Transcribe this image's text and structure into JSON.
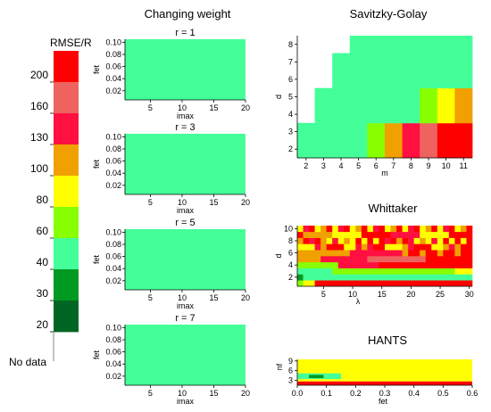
{
  "legend": {
    "title": "RMSE/R",
    "no_data_label": "No data",
    "tick_labels": [
      "200",
      "160",
      "130",
      "100",
      "80",
      "60",
      "40",
      "30",
      "20"
    ],
    "colors_top_to_bottom": [
      "#ff0000",
      "#ee6360",
      "#ff1040",
      "#f0a000",
      "#ffff00",
      "#88ff00",
      "#44ff99",
      "#009922",
      "#006622"
    ],
    "no_data_color": "#ffffff"
  },
  "chart_data": [
    {
      "panel": "changing-weight",
      "title": "Changing weight",
      "type": "heatmap",
      "subplots": [
        {
          "title": "r = 1",
          "xlabel": "imax",
          "ylabel": "fet",
          "xticks": [
            "5",
            "10",
            "15",
            "20"
          ],
          "yticks": [
            "0.10",
            "0.08",
            "0.06",
            "0.04",
            "0.02"
          ],
          "xlim": [
            1,
            20
          ],
          "ylim": [
            0.005,
            0.105
          ],
          "fill": "#44ff99"
        },
        {
          "title": "r = 3",
          "xlabel": "imax",
          "ylabel": "fet",
          "xticks": [
            "5",
            "10",
            "15",
            "20"
          ],
          "yticks": [
            "0.10",
            "0.08",
            "0.06",
            "0.04",
            "0.02"
          ],
          "xlim": [
            1,
            20
          ],
          "ylim": [
            0.005,
            0.105
          ],
          "fill": "#44ff99"
        },
        {
          "title": "r = 5",
          "xlabel": "imax",
          "ylabel": "fet",
          "xticks": [
            "5",
            "10",
            "15",
            "20"
          ],
          "yticks": [
            "0.10",
            "0.08",
            "0.06",
            "0.04",
            "0.02"
          ],
          "xlim": [
            1,
            20
          ],
          "ylim": [
            0.005,
            0.105
          ],
          "fill": "#44ff99"
        },
        {
          "title": "r = 7",
          "xlabel": "imax",
          "ylabel": "fet",
          "xticks": [
            "5",
            "10",
            "15",
            "20"
          ],
          "yticks": [
            "0.10",
            "0.08",
            "0.06",
            "0.04",
            "0.02"
          ],
          "xlim": [
            1,
            20
          ],
          "ylim": [
            0.005,
            0.105
          ],
          "fill": "#44ff99"
        }
      ]
    },
    {
      "panel": "savitzky-golay",
      "title": "Savitzky-Golay",
      "type": "heatmap",
      "xlabel": "m",
      "ylabel": "d",
      "xticks": [
        "2",
        "3",
        "4",
        "5",
        "6",
        "7",
        "8",
        "9",
        "10",
        "11"
      ],
      "yticks": [
        "2",
        "3",
        "4",
        "5",
        "6",
        "7",
        "8"
      ],
      "xlim": [
        1.5,
        11.5
      ],
      "ylim": [
        1.5,
        8.5
      ],
      "valid_rows_by_column": [
        {
          "m": 2,
          "d_max": 3
        },
        {
          "m": 3,
          "d_max": 5
        },
        {
          "m": 4,
          "d_max": 7
        },
        {
          "m": 5,
          "d_max": 8
        },
        {
          "m": 6,
          "d_max": 8
        },
        {
          "m": 7,
          "d_max": 8
        },
        {
          "m": 8,
          "d_max": 8
        },
        {
          "m": 9,
          "d_max": 8
        },
        {
          "m": 10,
          "d_max": 8
        },
        {
          "m": 11,
          "d_max": 8
        }
      ],
      "cells": [
        {
          "m": 6,
          "d": 2,
          "color": "#88ff00"
        },
        {
          "m": 6,
          "d": 3,
          "color": "#88ff00"
        },
        {
          "m": 7,
          "d": 2,
          "color": "#f0a000"
        },
        {
          "m": 7,
          "d": 3,
          "color": "#f0a000"
        },
        {
          "m": 8,
          "d": 2,
          "color": "#ff1040"
        },
        {
          "m": 8,
          "d": 3,
          "color": "#ff1040"
        },
        {
          "m": 9,
          "d": 2,
          "color": "#ee6360"
        },
        {
          "m": 9,
          "d": 3,
          "color": "#ee6360"
        },
        {
          "m": 9,
          "d": 4,
          "color": "#88ff00"
        },
        {
          "m": 9,
          "d": 5,
          "color": "#88ff00"
        },
        {
          "m": 10,
          "d": 2,
          "color": "#ff0000"
        },
        {
          "m": 10,
          "d": 3,
          "color": "#ff0000"
        },
        {
          "m": 10,
          "d": 4,
          "color": "#ffff00"
        },
        {
          "m": 10,
          "d": 5,
          "color": "#ffff00"
        },
        {
          "m": 11,
          "d": 2,
          "color": "#ff0000"
        },
        {
          "m": 11,
          "d": 3,
          "color": "#ff0000"
        },
        {
          "m": 11,
          "d": 4,
          "color": "#f0a000"
        },
        {
          "m": 11,
          "d": 5,
          "color": "#f0a000"
        }
      ],
      "default_color": "#44ff99"
    },
    {
      "panel": "whittaker",
      "title": "Whittaker",
      "type": "heatmap",
      "xlabel": "λ",
      "ylabel": "d",
      "xticks": [
        "5",
        "10",
        "15",
        "20",
        "25",
        "30"
      ],
      "yticks": [
        "2",
        "4",
        "6",
        "8",
        "10"
      ],
      "xlim": [
        0.5,
        30.5
      ],
      "ylim": [
        0.5,
        10.5
      ]
    },
    {
      "panel": "hants",
      "title": "HANTS",
      "type": "heatmap",
      "xlabel": "fet",
      "ylabel": "nf",
      "xticks": [
        "0.0",
        "0.1",
        "0.2",
        "0.3",
        "0.4",
        "0.5",
        "0.6"
      ],
      "yticks": [
        "3",
        "6",
        "9"
      ],
      "xlim": [
        0.0,
        0.6
      ],
      "ylim": [
        1.5,
        9.5
      ],
      "bands": [
        {
          "nf_range": [
            1.5,
            2.7
          ],
          "fet_range": [
            0.0,
            0.6
          ],
          "color": "#ff0000"
        },
        {
          "nf_range": [
            2.7,
            3.4
          ],
          "fet_range": [
            0.0,
            0.6
          ],
          "color": "#ffff00"
        },
        {
          "nf_range": [
            3.4,
            5.2
          ],
          "fet_range": [
            0.0,
            0.15
          ],
          "color": "#44ff99"
        },
        {
          "nf_range": [
            3.4,
            5.2
          ],
          "fet_range": [
            0.15,
            0.6
          ],
          "color": "#ffff00"
        },
        {
          "nf_range": [
            3.7,
            4.7
          ],
          "fet_range": [
            0.04,
            0.09
          ],
          "color": "#009922"
        },
        {
          "nf_range": [
            5.2,
            9.5
          ],
          "fet_range": [
            0.0,
            0.6
          ],
          "color": "#ffff00"
        }
      ]
    }
  ]
}
